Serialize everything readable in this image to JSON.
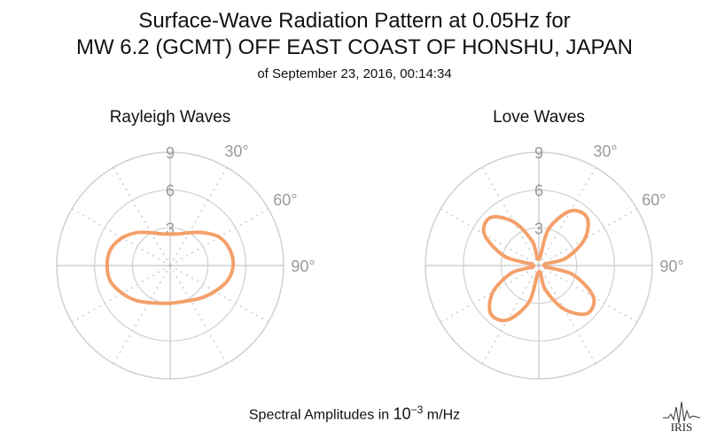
{
  "title_line1": "Surface-Wave Radiation Pattern at 0.05Hz for",
  "title_line2": "MW 6.2 (GCMT) OFF EAST COAST OF HONSHU, JAPAN",
  "subtitle": "of September 23, 2016, 00:14:34",
  "footer": {
    "prefix": "Spectral Amplitudes in ",
    "base": "10",
    "exponent": "−3",
    "unit": " m/Hz"
  },
  "logo_text": "IRIS",
  "colors": {
    "pattern": "#F4A06A",
    "grid": "#d0d0d0",
    "label": "#999999"
  },
  "chart_data": [
    {
      "type": "polar",
      "title": "Rayleigh Waves",
      "radial_ticks": [
        "3",
        "6",
        "9"
      ],
      "radial_max": 9,
      "angular_ticks": [
        "30°",
        "60°",
        "90°"
      ],
      "angular_tick_values": [
        30,
        60,
        90
      ],
      "grid_step_deg": 30,
      "series": [
        {
          "theta": [
            0,
            15,
            30,
            45,
            60,
            75,
            90,
            105,
            120,
            135,
            150,
            165,
            180,
            195,
            210,
            225,
            240,
            255,
            270,
            285,
            300,
            315,
            330,
            345
          ],
          "r": [
            2.5,
            2.6,
            3.0,
            3.7,
            4.5,
            4.9,
            5.0,
            4.7,
            4.1,
            3.6,
            3.2,
            3.0,
            3.0,
            3.1,
            3.4,
            3.9,
            4.4,
            4.9,
            5.0,
            4.9,
            4.4,
            3.7,
            3.0,
            2.6
          ]
        }
      ]
    },
    {
      "type": "polar",
      "title": "Love Waves",
      "radial_ticks": [
        "3",
        "6",
        "9"
      ],
      "radial_max": 9,
      "angular_ticks": [
        "30°",
        "60°",
        "90°"
      ],
      "angular_tick_values": [
        30,
        60,
        90
      ],
      "grid_step_deg": 30,
      "series": [
        {
          "theta": [
            0,
            15,
            30,
            45,
            60,
            75,
            90,
            105,
            120,
            135,
            150,
            165,
            180,
            195,
            210,
            225,
            240,
            255,
            270,
            285,
            300,
            315,
            330,
            345
          ],
          "r": [
            0.5,
            3.0,
            5.0,
            5.4,
            4.2,
            2.2,
            0.4,
            2.8,
            5.0,
            5.4,
            4.0,
            2.0,
            0.5,
            3.0,
            5.0,
            5.4,
            4.2,
            2.2,
            0.4,
            2.8,
            5.0,
            5.4,
            4.0,
            2.0
          ]
        }
      ]
    }
  ]
}
